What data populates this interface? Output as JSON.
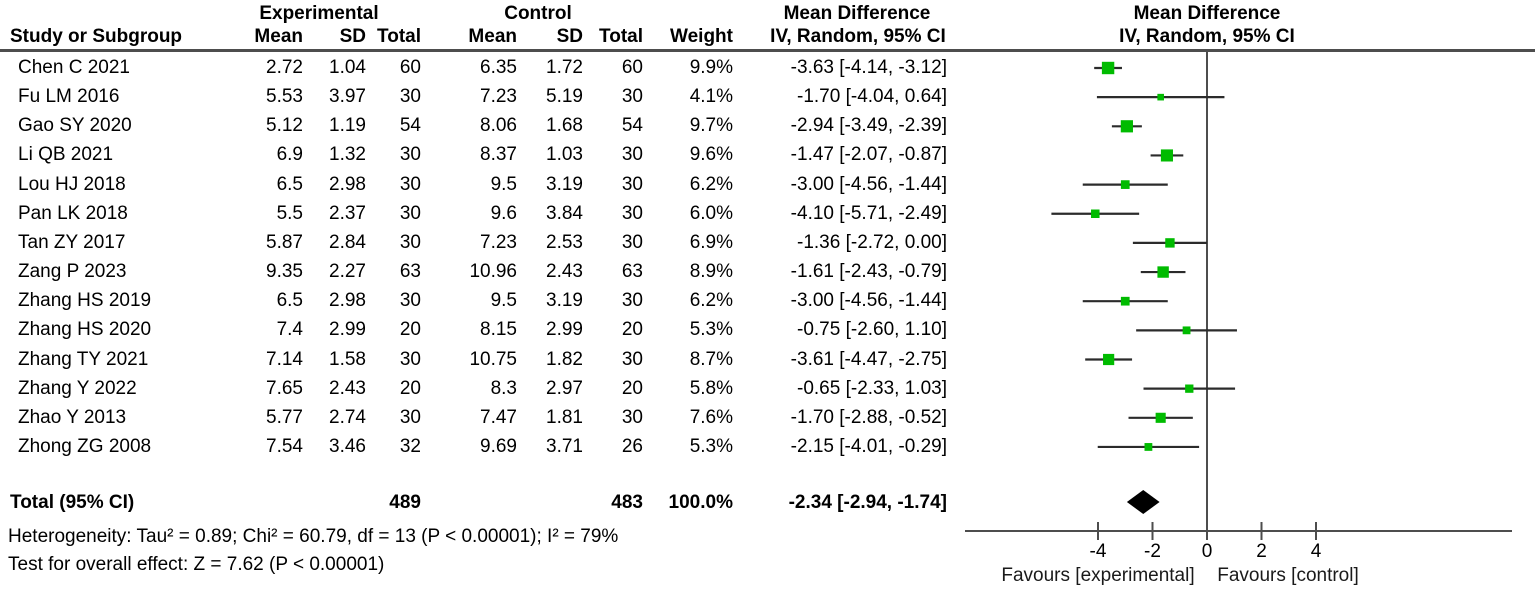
{
  "header": {
    "experimental": "Experimental",
    "control": "Control",
    "mean_difference_text_col": "Mean Difference",
    "mean_difference_plot_col": "Mean Difference",
    "study_or_subgroup": "Study or Subgroup",
    "mean": "Mean",
    "sd": "SD",
    "total": "Total",
    "weight": "Weight",
    "method_text_col": "IV, Random, 95% CI",
    "method_plot_col": "IV, Random, 95% CI"
  },
  "chart_data": {
    "type": "forest",
    "effect_measure": "Mean Difference",
    "model": "IV, Random, 95% CI",
    "studies": [
      {
        "name": "Chen C 2021",
        "exp_mean": "2.72",
        "exp_sd": "1.04",
        "exp_total": "60",
        "ctl_mean": "6.35",
        "ctl_sd": "1.72",
        "ctl_total": "60",
        "weight": "9.9%",
        "ci_text": "-3.63 [-4.14, -3.12]",
        "md": -3.63,
        "lo": -4.14,
        "hi": -3.12,
        "w": 9.9
      },
      {
        "name": "Fu LM 2016",
        "exp_mean": "5.53",
        "exp_sd": "3.97",
        "exp_total": "30",
        "ctl_mean": "7.23",
        "ctl_sd": "5.19",
        "ctl_total": "30",
        "weight": "4.1%",
        "ci_text": "-1.70 [-4.04, 0.64]",
        "md": -1.7,
        "lo": -4.04,
        "hi": 0.64,
        "w": 4.1
      },
      {
        "name": "Gao SY 2020",
        "exp_mean": "5.12",
        "exp_sd": "1.19",
        "exp_total": "54",
        "ctl_mean": "8.06",
        "ctl_sd": "1.68",
        "ctl_total": "54",
        "weight": "9.7%",
        "ci_text": "-2.94 [-3.49, -2.39]",
        "md": -2.94,
        "lo": -3.49,
        "hi": -2.39,
        "w": 9.7
      },
      {
        "name": "Li QB 2021",
        "exp_mean": "6.9",
        "exp_sd": "1.32",
        "exp_total": "30",
        "ctl_mean": "8.37",
        "ctl_sd": "1.03",
        "ctl_total": "30",
        "weight": "9.6%",
        "ci_text": "-1.47 [-2.07, -0.87]",
        "md": -1.47,
        "lo": -2.07,
        "hi": -0.87,
        "w": 9.6
      },
      {
        "name": "Lou HJ 2018",
        "exp_mean": "6.5",
        "exp_sd": "2.98",
        "exp_total": "30",
        "ctl_mean": "9.5",
        "ctl_sd": "3.19",
        "ctl_total": "30",
        "weight": "6.2%",
        "ci_text": "-3.00 [-4.56, -1.44]",
        "md": -3.0,
        "lo": -4.56,
        "hi": -1.44,
        "w": 6.2
      },
      {
        "name": "Pan LK 2018",
        "exp_mean": "5.5",
        "exp_sd": "2.37",
        "exp_total": "30",
        "ctl_mean": "9.6",
        "ctl_sd": "3.84",
        "ctl_total": "30",
        "weight": "6.0%",
        "ci_text": "-4.10 [-5.71, -2.49]",
        "md": -4.1,
        "lo": -5.71,
        "hi": -2.49,
        "w": 6.0
      },
      {
        "name": "Tan ZY 2017",
        "exp_mean": "5.87",
        "exp_sd": "2.84",
        "exp_total": "30",
        "ctl_mean": "7.23",
        "ctl_sd": "2.53",
        "ctl_total": "30",
        "weight": "6.9%",
        "ci_text": "-1.36 [-2.72, 0.00]",
        "md": -1.36,
        "lo": -2.72,
        "hi": 0.0,
        "w": 6.9
      },
      {
        "name": "Zang P 2023",
        "exp_mean": "9.35",
        "exp_sd": "2.27",
        "exp_total": "63",
        "ctl_mean": "10.96",
        "ctl_sd": "2.43",
        "ctl_total": "63",
        "weight": "8.9%",
        "ci_text": "-1.61 [-2.43, -0.79]",
        "md": -1.61,
        "lo": -2.43,
        "hi": -0.79,
        "w": 8.9
      },
      {
        "name": "Zhang HS 2019",
        "exp_mean": "6.5",
        "exp_sd": "2.98",
        "exp_total": "30",
        "ctl_mean": "9.5",
        "ctl_sd": "3.19",
        "ctl_total": "30",
        "weight": "6.2%",
        "ci_text": "-3.00 [-4.56, -1.44]",
        "md": -3.0,
        "lo": -4.56,
        "hi": -1.44,
        "w": 6.2
      },
      {
        "name": "Zhang HS 2020",
        "exp_mean": "7.4",
        "exp_sd": "2.99",
        "exp_total": "20",
        "ctl_mean": "8.15",
        "ctl_sd": "2.99",
        "ctl_total": "20",
        "weight": "5.3%",
        "ci_text": "-0.75 [-2.60, 1.10]",
        "md": -0.75,
        "lo": -2.6,
        "hi": 1.1,
        "w": 5.3
      },
      {
        "name": "Zhang TY 2021",
        "exp_mean": "7.14",
        "exp_sd": "1.58",
        "exp_total": "30",
        "ctl_mean": "10.75",
        "ctl_sd": "1.82",
        "ctl_total": "30",
        "weight": "8.7%",
        "ci_text": "-3.61 [-4.47, -2.75]",
        "md": -3.61,
        "lo": -4.47,
        "hi": -2.75,
        "w": 8.7
      },
      {
        "name": "Zhang Y 2022",
        "exp_mean": "7.65",
        "exp_sd": "2.43",
        "exp_total": "20",
        "ctl_mean": "8.3",
        "ctl_sd": "2.97",
        "ctl_total": "20",
        "weight": "5.8%",
        "ci_text": "-0.65 [-2.33, 1.03]",
        "md": -0.65,
        "lo": -2.33,
        "hi": 1.03,
        "w": 5.8
      },
      {
        "name": "Zhao Y 2013",
        "exp_mean": "5.77",
        "exp_sd": "2.74",
        "exp_total": "30",
        "ctl_mean": "7.47",
        "ctl_sd": "1.81",
        "ctl_total": "30",
        "weight": "7.6%",
        "ci_text": "-1.70 [-2.88, -0.52]",
        "md": -1.7,
        "lo": -2.88,
        "hi": -0.52,
        "w": 7.6
      },
      {
        "name": "Zhong ZG 2008",
        "exp_mean": "7.54",
        "exp_sd": "3.46",
        "exp_total": "32",
        "ctl_mean": "9.69",
        "ctl_sd": "3.71",
        "ctl_total": "26",
        "weight": "5.3%",
        "ci_text": "-2.15 [-4.01, -0.29]",
        "md": -2.15,
        "lo": -4.01,
        "hi": -0.29,
        "w": 5.3
      }
    ],
    "total": {
      "label": "Total (95% CI)",
      "exp_total": "489",
      "ctl_total": "483",
      "weight": "100.0%",
      "ci_text": "-2.34 [-2.94, -1.74]",
      "md": -2.34,
      "lo": -2.94,
      "hi": -1.74
    },
    "axis": {
      "ticks": [
        -4,
        -2,
        0,
        2,
        4
      ],
      "range_min": -8.9,
      "range_max": 11.2,
      "favours_left": "Favours [experimental]",
      "favours_right": "Favours [control]"
    }
  },
  "footer": {
    "heterogeneity": "Heterogeneity: Tau² = 0.89; Chi² = 60.79, df = 13 (P < 0.00001); I² = 79%",
    "overall_effect": "Test for overall effect: Z = 7.62 (P < 0.00001)"
  },
  "colors": {
    "marker_green": "#00bb00",
    "diamond_black": "#000000",
    "ci_line_dark": "#2b2b2b",
    "axis_gray": "#4d4d4d"
  }
}
